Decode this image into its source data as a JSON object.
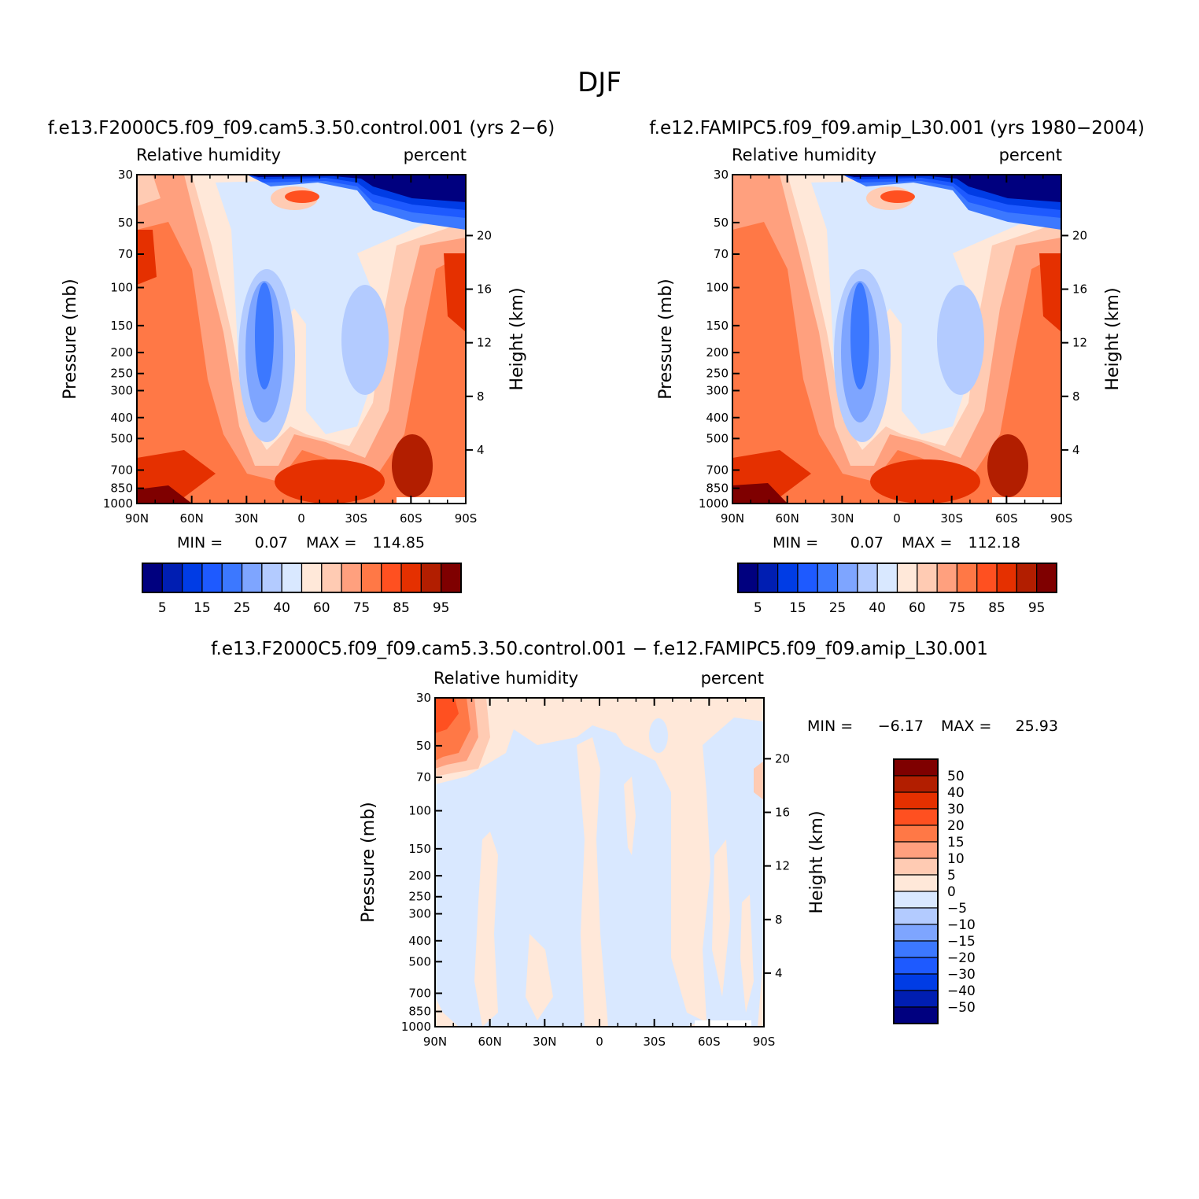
{
  "figure": {
    "title": "DJF"
  },
  "colors": {
    "abs_levels": [
      "#00007f",
      "#001eb2",
      "#003ce5",
      "#1e5aff",
      "#3c78ff",
      "#7ea5ff",
      "#b3cbff",
      "#d9e8ff",
      "#ffe8d9",
      "#ffcbb3",
      "#ffa07e",
      "#ff7846",
      "#ff5020",
      "#e53000",
      "#b21e00",
      "#7f0000"
    ],
    "diff_levels": [
      "#00007f",
      "#001eb2",
      "#003ce5",
      "#1e5aff",
      "#3c78ff",
      "#7ea5ff",
      "#b3cbff",
      "#d9e8ff",
      "#ffe8d9",
      "#ffcbb3",
      "#ffa07e",
      "#ff7846",
      "#ff5020",
      "#e53000",
      "#b21e00",
      "#7f0000"
    ]
  },
  "chart_data": [
    {
      "type": "heatmap",
      "panel": "case",
      "run_title": "f.e13.F2000C5.f09_f09.cam5.3.50.control.001 (yrs 2−6)",
      "field_label": "Relative humidity",
      "units_label": "percent",
      "xlabel": "",
      "ylabel": "Pressure (mb)",
      "ylabel_right": "Height (km)",
      "x_ticks": [
        "90N",
        "60N",
        "30N",
        "0",
        "30S",
        "60S",
        "90S"
      ],
      "y_ticks": [
        "30",
        "50",
        "70",
        "100",
        "150",
        "200",
        "250",
        "300",
        "400",
        "500",
        "700",
        "850",
        "1000"
      ],
      "y_ticks_right": [
        "20",
        "16",
        "12",
        "8",
        "4"
      ],
      "xlim": [
        90,
        -90
      ],
      "ylim": [
        1000,
        30
      ],
      "min_label": "MIN =",
      "min_value": "0.07",
      "max_label": "MAX =",
      "max_value": "114.85",
      "min": 0.07,
      "max": 114.85,
      "colorbar_labels": [
        "5",
        "15",
        "25",
        "40",
        "60",
        "75",
        "85",
        "95"
      ]
    },
    {
      "type": "heatmap",
      "panel": "control",
      "run_title": "f.e12.FAMIPC5.f09_f09.amip_L30.001 (yrs 1980−2004)",
      "field_label": "Relative humidity",
      "units_label": "percent",
      "xlabel": "",
      "ylabel": "Pressure (mb)",
      "ylabel_right": "Height (km)",
      "x_ticks": [
        "90N",
        "60N",
        "30N",
        "0",
        "30S",
        "60S",
        "90S"
      ],
      "y_ticks": [
        "30",
        "50",
        "70",
        "100",
        "150",
        "200",
        "250",
        "300",
        "400",
        "500",
        "700",
        "850",
        "1000"
      ],
      "y_ticks_right": [
        "20",
        "16",
        "12",
        "8",
        "4"
      ],
      "xlim": [
        90,
        -90
      ],
      "ylim": [
        1000,
        30
      ],
      "min_label": "MIN =",
      "min_value": "0.07",
      "max_label": "MAX =",
      "max_value": "112.18",
      "min": 0.07,
      "max": 112.18,
      "colorbar_labels": [
        "5",
        "15",
        "25",
        "40",
        "60",
        "75",
        "85",
        "95"
      ]
    },
    {
      "type": "heatmap",
      "panel": "difference",
      "run_title": "f.e13.F2000C5.f09_f09.cam5.3.50.control.001 − f.e12.FAMIPC5.f09_f09.amip_L30.001",
      "field_label": "Relative humidity",
      "units_label": "percent",
      "xlabel": "",
      "ylabel": "Pressure (mb)",
      "ylabel_right": "Height (km)",
      "x_ticks": [
        "90N",
        "60N",
        "30N",
        "0",
        "30S",
        "60S",
        "90S"
      ],
      "y_ticks": [
        "30",
        "50",
        "70",
        "100",
        "150",
        "200",
        "250",
        "300",
        "400",
        "500",
        "700",
        "850",
        "1000"
      ],
      "y_ticks_right": [
        "20",
        "16",
        "12",
        "8",
        "4"
      ],
      "xlim": [
        90,
        -90
      ],
      "ylim": [
        1000,
        30
      ],
      "min_label": "MIN =",
      "min_value": "−6.17",
      "max_label": "MAX =",
      "max_value": "25.93",
      "min": -6.17,
      "max": 25.93,
      "colorbar_labels": [
        "50",
        "40",
        "30",
        "20",
        "15",
        "10",
        "5",
        "0",
        "−5",
        "−10",
        "−15",
        "−20",
        "−30",
        "−40",
        "−50"
      ]
    }
  ]
}
